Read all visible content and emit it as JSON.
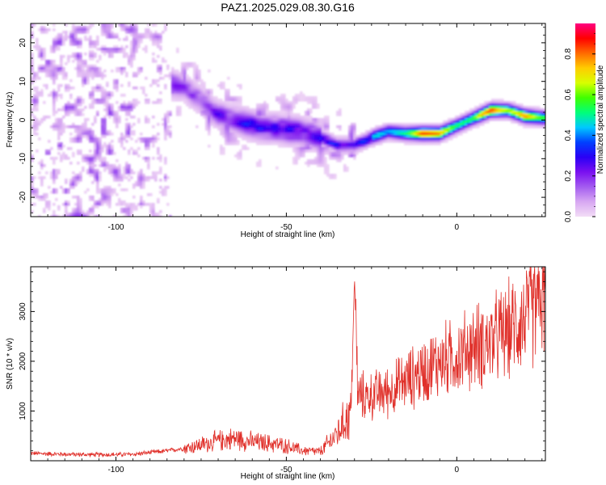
{
  "figure": {
    "title": "PAZ1.2025.029.08.30.G16"
  },
  "colors": {
    "snr_line": "#e0302a",
    "axis": "#000000",
    "colormap": [
      "#f3ddf6",
      "#d7a8f2",
      "#a45cf0",
      "#7a10f0",
      "#2a00f5",
      "#0040ff",
      "#00c8ff",
      "#00ff7a",
      "#40ff00",
      "#d8ff00",
      "#ffcc00",
      "#ff6a00",
      "#ff0000",
      "#ff0080"
    ]
  },
  "chart_data": [
    {
      "type": "heatmap",
      "xlabel": "Height of straight line (km)",
      "ylabel": "Frequency (Hz)",
      "xlim": [
        -125,
        26
      ],
      "ylim": [
        -25,
        25
      ],
      "xticks": [
        -100,
        -50,
        0
      ],
      "yticks": [
        -20,
        -10,
        0,
        10,
        20
      ],
      "colorbar": {
        "label": "Normalized spectral amplitude",
        "range": [
          0,
          0.95
        ],
        "ticks": [
          0.0,
          0.2,
          0.4,
          0.6,
          0.8
        ]
      },
      "ridge": {
        "x": [
          -84,
          -80,
          -75,
          -70,
          -65,
          -60,
          -55,
          -50,
          -45,
          -40,
          -35,
          -30,
          -25,
          -20,
          -15,
          -10,
          -5,
          0,
          5,
          10,
          15,
          20,
          26
        ],
        "frequency": [
          9.5,
          8.5,
          5,
          1.5,
          0,
          -1.5,
          -2,
          -2.5,
          -3,
          -4.5,
          -6.5,
          -6.5,
          -4.5,
          -3,
          -3.5,
          -3.5,
          -3.5,
          -1.5,
          0.5,
          2.5,
          2.5,
          1,
          0.5
        ],
        "amplitude": [
          0.25,
          0.2,
          0.2,
          0.25,
          0.25,
          0.35,
          0.3,
          0.35,
          0.3,
          0.35,
          0.35,
          0.35,
          0.45,
          0.5,
          0.6,
          0.85,
          0.8,
          0.55,
          0.6,
          0.9,
          0.75,
          0.8,
          0.6
        ]
      }
    },
    {
      "type": "line",
      "xlabel": "Height of straight line (km)",
      "ylabel": "SNR (10 * v/v)",
      "xlim": [
        -125,
        26
      ],
      "ylim": [
        0,
        3900
      ],
      "xticks": [
        -100,
        -50,
        0
      ],
      "yticks": [
        1000,
        2000,
        3000
      ],
      "series": [
        {
          "x": [
            -125,
            -115,
            -105,
            -95,
            -85,
            -80,
            -75,
            -70,
            -65,
            -60,
            -55,
            -50,
            -45,
            -40,
            -35,
            -31,
            -30,
            -29,
            -25,
            -20,
            -15,
            -10,
            -5,
            0,
            5,
            10,
            15,
            20,
            26
          ],
          "values": [
            150,
            130,
            120,
            130,
            200,
            250,
            320,
            400,
            450,
            380,
            350,
            300,
            200,
            180,
            550,
            1000,
            3700,
            1300,
            1300,
            1400,
            1600,
            1800,
            2000,
            2100,
            2300,
            2400,
            2600,
            2900,
            3300
          ]
        }
      ]
    }
  ]
}
